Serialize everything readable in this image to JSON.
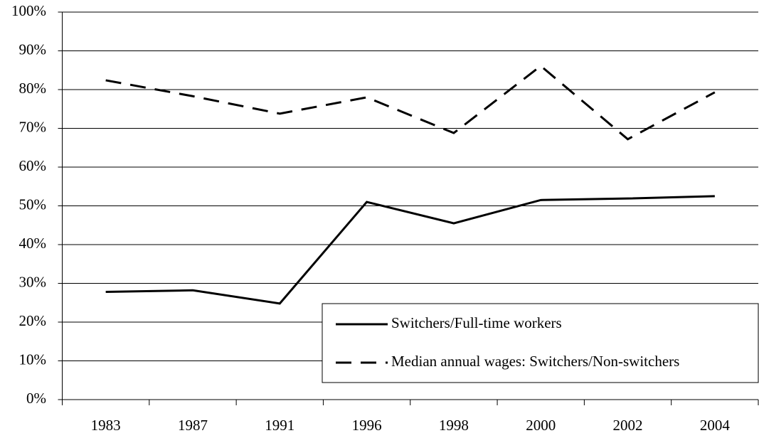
{
  "chart_data": {
    "type": "line",
    "categories": [
      "1983",
      "1987",
      "1991",
      "1996",
      "1998",
      "2000",
      "2002",
      "2004"
    ],
    "series": [
      {
        "name": "Switchers/Full-time workers",
        "color": "#000000",
        "dash": "solid",
        "values": [
          27.8,
          28.2,
          24.8,
          51,
          45.5,
          51.5,
          51.9,
          52.5
        ]
      },
      {
        "name": "Median annual wages: Switchers/Non-switchers",
        "color": "#000000",
        "dash": "dashed",
        "values": [
          82.4,
          78.3,
          73.8,
          78,
          68.8,
          86.1,
          67.2,
          79.3
        ]
      }
    ],
    "ylim": [
      0,
      100
    ],
    "yticks": [
      {
        "value": 0,
        "label": "0%"
      },
      {
        "value": 10,
        "label": "10%"
      },
      {
        "value": 20,
        "label": "20%"
      },
      {
        "value": 30,
        "label": "30%"
      },
      {
        "value": 40,
        "label": "40%"
      },
      {
        "value": 50,
        "label": "50%"
      },
      {
        "value": 60,
        "label": "60%"
      },
      {
        "value": 70,
        "label": "70%"
      },
      {
        "value": 80,
        "label": "80%"
      },
      {
        "value": 90,
        "label": "90%"
      },
      {
        "value": 100,
        "label": "100%"
      }
    ],
    "grid": true,
    "legend": "lower right"
  }
}
